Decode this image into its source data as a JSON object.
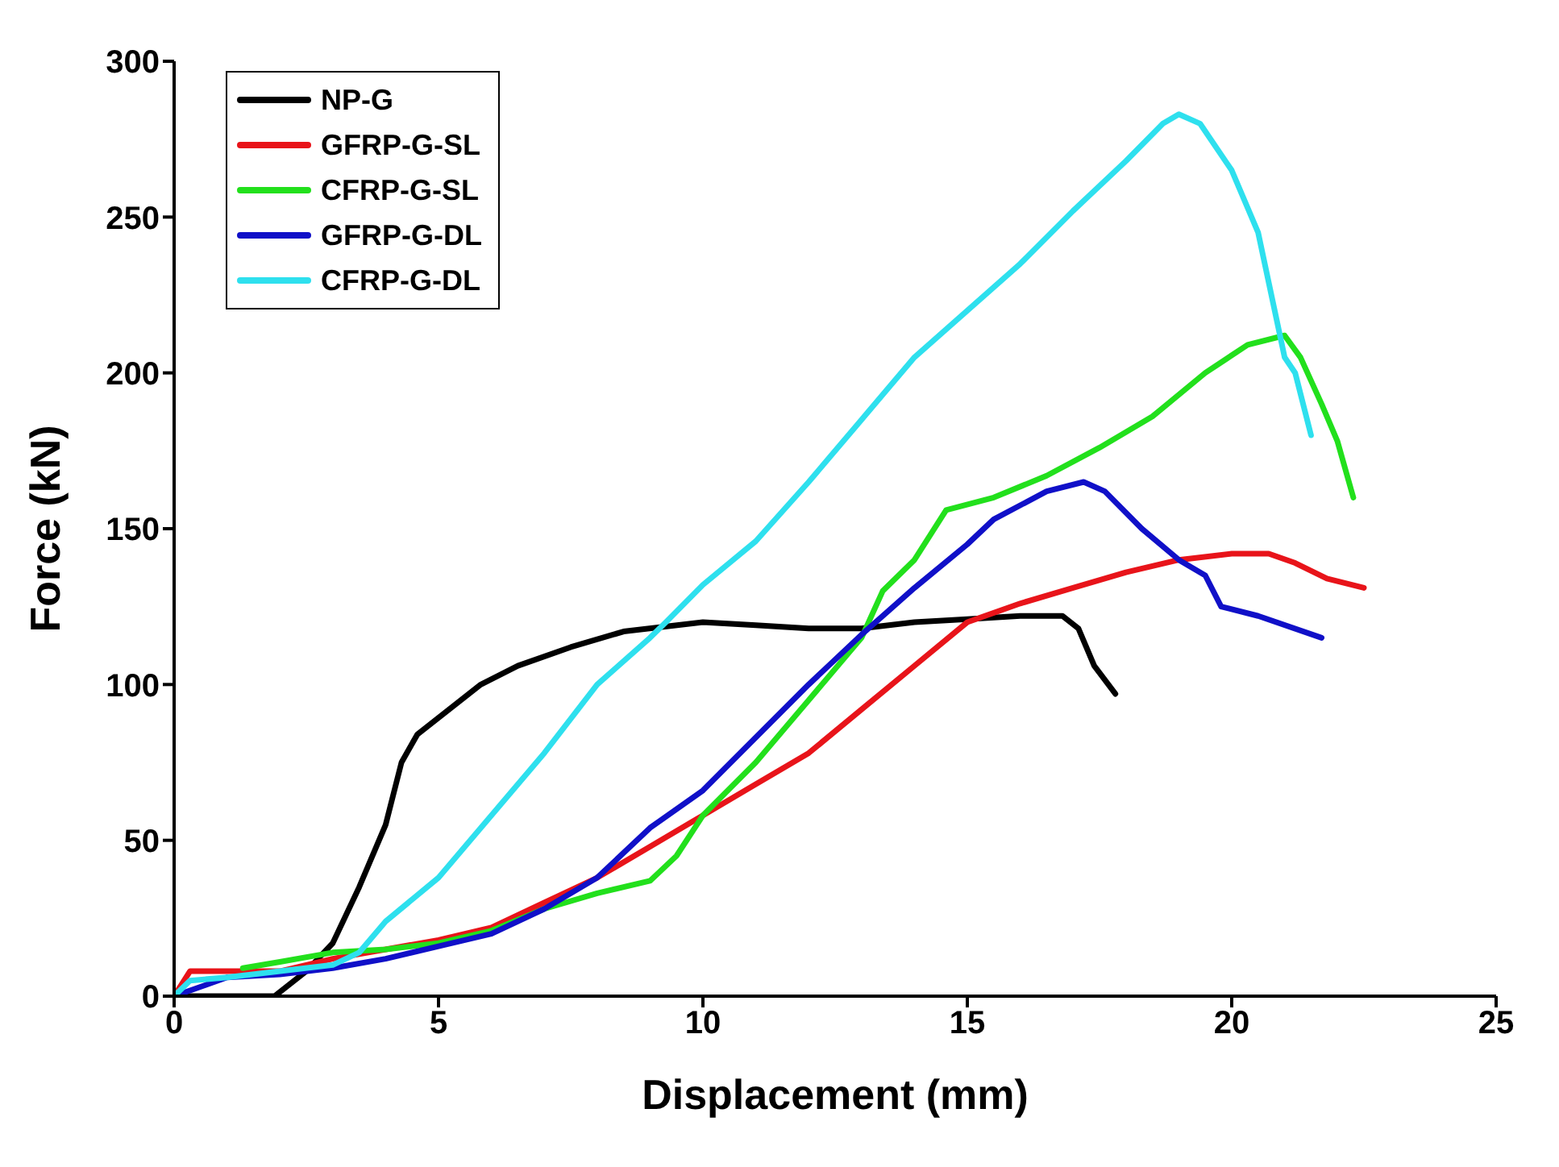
{
  "chart_data": {
    "type": "line",
    "xlabel": "Displacement (mm)",
    "ylabel": "Force (kN)",
    "xlim": [
      0,
      25
    ],
    "xticks": [
      0,
      5,
      10,
      15,
      20,
      25
    ],
    "ylim": [
      0,
      300
    ],
    "yticks": [
      0,
      50,
      100,
      150,
      200,
      250,
      300
    ],
    "grid": false,
    "legend": "top left",
    "marker": "none",
    "line_style": "solid",
    "series": [
      {
        "name": "NP-G",
        "color": "#000000",
        "x": [
          0,
          1.9,
          2.5,
          3,
          3.5,
          4,
          4.3,
          4.6,
          5.2,
          5.8,
          6.5,
          7.5,
          8.5,
          10,
          11,
          12,
          13,
          14,
          15,
          16,
          16.8,
          17.1,
          17.4,
          17.8
        ],
        "values": [
          0,
          0,
          8,
          17,
          35,
          55,
          75,
          84,
          92,
          100,
          106,
          112,
          117,
          120,
          119,
          118,
          118,
          120,
          121,
          122,
          122,
          118,
          106,
          97
        ]
      },
      {
        "name": "GFRP-G-SL",
        "color": "#e8141a",
        "x": [
          0,
          0.3,
          1,
          2,
          3,
          4,
          5,
          6,
          7,
          8,
          9,
          10,
          11,
          12,
          13,
          14,
          15,
          16,
          17,
          18,
          19,
          20,
          20.7,
          21.2,
          21.8,
          22.5
        ],
        "values": [
          0,
          8,
          8,
          8,
          12,
          15,
          18,
          22,
          30,
          38,
          48,
          58,
          68,
          78,
          92,
          106,
          120,
          126,
          131,
          136,
          140,
          142,
          142,
          139,
          134,
          131
        ]
      },
      {
        "name": "CFRP-G-SL",
        "color": "#22e01c",
        "x": [
          1.3,
          2,
          3,
          4,
          5,
          6,
          7,
          8,
          9,
          9.5,
          10,
          11,
          12,
          13,
          13.4,
          14,
          14.6,
          15.5,
          16.5,
          17.5,
          18.5,
          19.5,
          20.3,
          21,
          21.3,
          21.7,
          22,
          22.3
        ],
        "values": [
          9,
          11,
          14,
          15,
          17,
          21,
          28,
          33,
          37,
          45,
          58,
          75,
          95,
          115,
          130,
          140,
          156,
          160,
          167,
          176,
          186,
          200,
          209,
          212,
          205,
          190,
          178,
          160
        ]
      },
      {
        "name": "GFRP-G-DL",
        "color": "#1010c8",
        "x": [
          0,
          1,
          2,
          3,
          4,
          5,
          6,
          7,
          8,
          9,
          10,
          11,
          12,
          13,
          14,
          15,
          15.5,
          16.5,
          17.2,
          17.6,
          18.3,
          19,
          19.5,
          19.8,
          20.5,
          21.7
        ],
        "values": [
          0,
          6,
          7,
          9,
          12,
          16,
          20,
          28,
          38,
          54,
          66,
          83,
          100,
          116,
          131,
          145,
          153,
          162,
          165,
          162,
          150,
          140,
          135,
          125,
          122,
          115
        ]
      },
      {
        "name": "CFRP-G-DL",
        "color": "#2ee0ee",
        "x": [
          0,
          0.3,
          1,
          2,
          3,
          3.5,
          4,
          5,
          6,
          7,
          8,
          9,
          9.3,
          10,
          11,
          12,
          13,
          14,
          15,
          16,
          17,
          18,
          18.7,
          19,
          19.4,
          20,
          20.5,
          21,
          21.2,
          21.5
        ],
        "values": [
          0,
          5,
          6,
          8,
          10,
          14,
          24,
          38,
          58,
          78,
          100,
          115,
          120,
          132,
          146,
          165,
          185,
          205,
          220,
          235,
          252,
          268,
          280,
          283,
          280,
          265,
          245,
          205,
          200,
          180
        ]
      }
    ]
  }
}
